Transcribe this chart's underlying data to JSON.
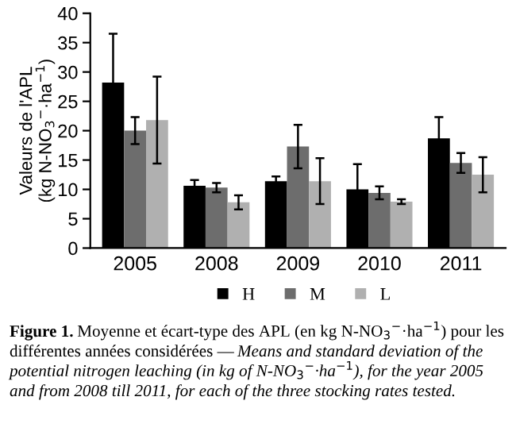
{
  "chart_data": {
    "type": "bar",
    "ylabel": "Valeurs de l'APL\n(kg N-NO$_{3}$$^{−}$·ha$^{−1}$)",
    "categories": [
      "2005",
      "2008",
      "2009",
      "2010",
      "2011"
    ],
    "series": [
      {
        "name": "H",
        "color": "#000000",
        "values": [
          28.2,
          10.6,
          11.4,
          10.0,
          18.7
        ],
        "errors": [
          8.3,
          1.0,
          0.8,
          4.3,
          3.6
        ]
      },
      {
        "name": "M",
        "color": "#6d6d6d",
        "values": [
          20.0,
          10.3,
          17.3,
          9.4,
          14.5
        ],
        "errors": [
          2.3,
          0.8,
          3.7,
          1.1,
          1.7
        ]
      },
      {
        "name": "L",
        "color": "#b0b0b0",
        "values": [
          21.8,
          7.8,
          11.4,
          7.9,
          12.5
        ],
        "errors": [
          7.4,
          1.2,
          3.9,
          0.4,
          3.0
        ]
      }
    ],
    "ylim": [
      0,
      40
    ],
    "yticks": [
      0,
      5,
      10,
      15,
      20,
      25,
      30,
      35,
      40
    ],
    "grid": false,
    "legend": "bottom",
    "annotations": [
      "Figure 1.",
      "Moyenne et écart-type des APL (en kg N-NO$_{3}$$^{−}$·ha$^{−1}$) pour les différentes années considérées —",
      "Means and standard deviation of the potential nitrogen leaching (in kg of N-NO$_{3}$$^{−}$·ha$^{−1}$), for the year 2005 and from 2008 till 2011, for each of the three stocking rates tested."
    ]
  }
}
